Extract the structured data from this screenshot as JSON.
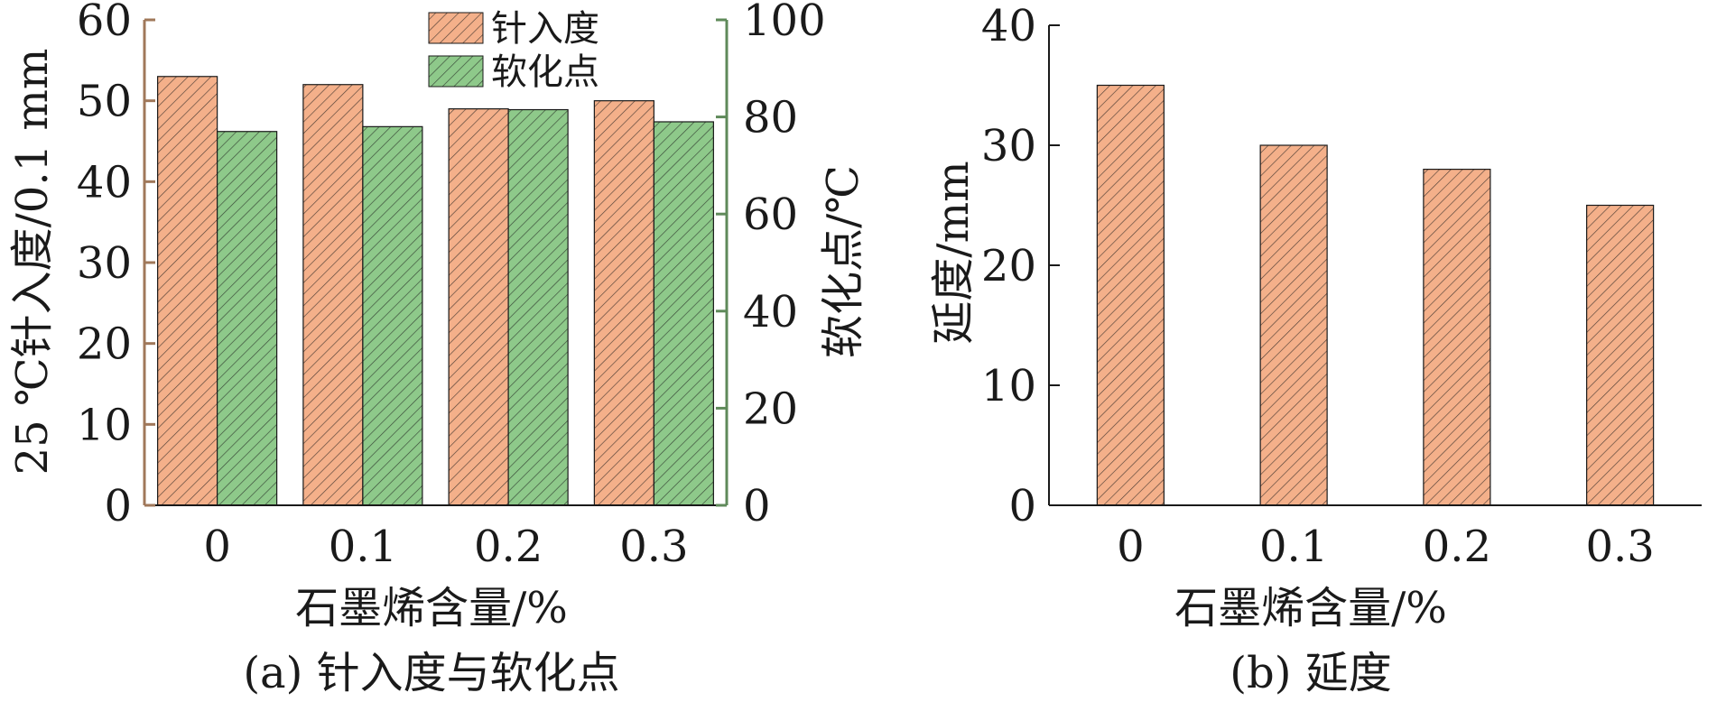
{
  "colors": {
    "penetration": "#f4b08a",
    "softening": "#8ec98a",
    "left_axis": "#a0785a",
    "right_axis": "#5f8a5a",
    "axis": "#1a1a1a",
    "hatch": "#1a1a1a"
  },
  "chart_data": [
    {
      "type": "bar",
      "caption": "(a) 针入度与软化点",
      "categories": [
        "0",
        "0.1",
        "0.2",
        "0.3"
      ],
      "xlabel": "石墨烯含量/%",
      "ylabel": "25 ℃针入度/0.1 mm",
      "ylabel_right": "软化点/℃",
      "ylim": [
        0,
        60
      ],
      "yticks": [
        0,
        10,
        20,
        30,
        40,
        50,
        60
      ],
      "ylim_right": [
        0,
        100
      ],
      "yticks_right": [
        0,
        20,
        40,
        60,
        80,
        100
      ],
      "legend_position": "top-center",
      "series": [
        {
          "name": "针入度",
          "axis": "left",
          "values": [
            53,
            52,
            49,
            50
          ]
        },
        {
          "name": "软化点",
          "axis": "right",
          "values": [
            77,
            78,
            81.5,
            79
          ]
        }
      ]
    },
    {
      "type": "bar",
      "caption": "(b) 延度",
      "categories": [
        "0",
        "0.1",
        "0.2",
        "0.3"
      ],
      "xlabel": "石墨烯含量/%",
      "ylabel": "延度/mm",
      "ylim": [
        0,
        40
      ],
      "yticks": [
        0,
        10,
        20,
        30,
        40
      ],
      "series": [
        {
          "values": [
            35,
            30,
            28,
            25
          ]
        }
      ]
    }
  ]
}
